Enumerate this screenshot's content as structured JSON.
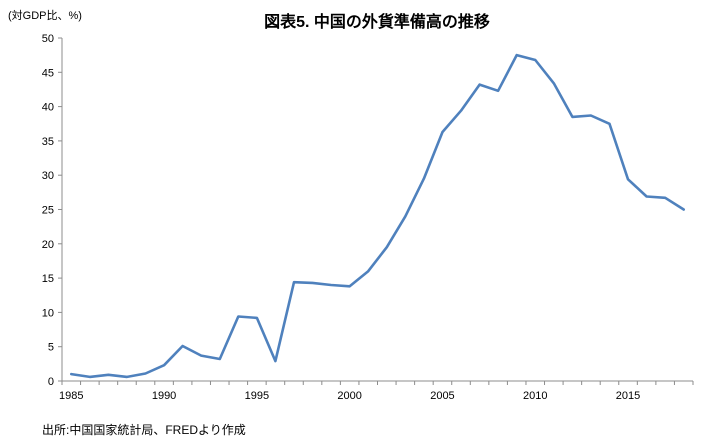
{
  "page": {
    "background": "#ffffff"
  },
  "chart_data": {
    "type": "line",
    "title": "図表5. 中国の外貨準備高の推移",
    "unit_label": "(対GDP比、%)",
    "source": "出所:中国国家統計局、FREDより作成",
    "x": [
      1985,
      1986,
      1987,
      1988,
      1989,
      1990,
      1991,
      1992,
      1993,
      1994,
      1995,
      1996,
      1997,
      1998,
      1999,
      2000,
      2001,
      2002,
      2003,
      2004,
      2005,
      2006,
      2007,
      2008,
      2009,
      2010,
      2011,
      2012,
      2013,
      2014,
      2015,
      2016,
      2017,
      2018
    ],
    "values": [
      1.0,
      0.6,
      0.9,
      0.6,
      1.1,
      2.3,
      5.1,
      3.7,
      3.2,
      9.4,
      9.2,
      2.9,
      14.4,
      14.3,
      14.0,
      13.8,
      16.0,
      19.5,
      24.0,
      29.5,
      36.3,
      39.4,
      43.2,
      42.3,
      47.5,
      46.8,
      43.4,
      38.5,
      38.7,
      37.5,
      29.4,
      26.9,
      26.7,
      25.0
    ],
    "xlabel": "",
    "ylabel": "",
    "ylim": [
      0,
      50
    ],
    "ytick_step": 5,
    "yticks": [
      "0",
      "5",
      "10",
      "15",
      "20",
      "25",
      "30",
      "35",
      "40",
      "45",
      "50"
    ],
    "xtick_labels": [
      "1985",
      "1990",
      "1995",
      "2000",
      "2005",
      "2010",
      "2015"
    ],
    "grid": "off",
    "legend": "none",
    "line_color": "#4F81BD",
    "axis_color": "#8C8C8C",
    "text_color": "#000000"
  }
}
